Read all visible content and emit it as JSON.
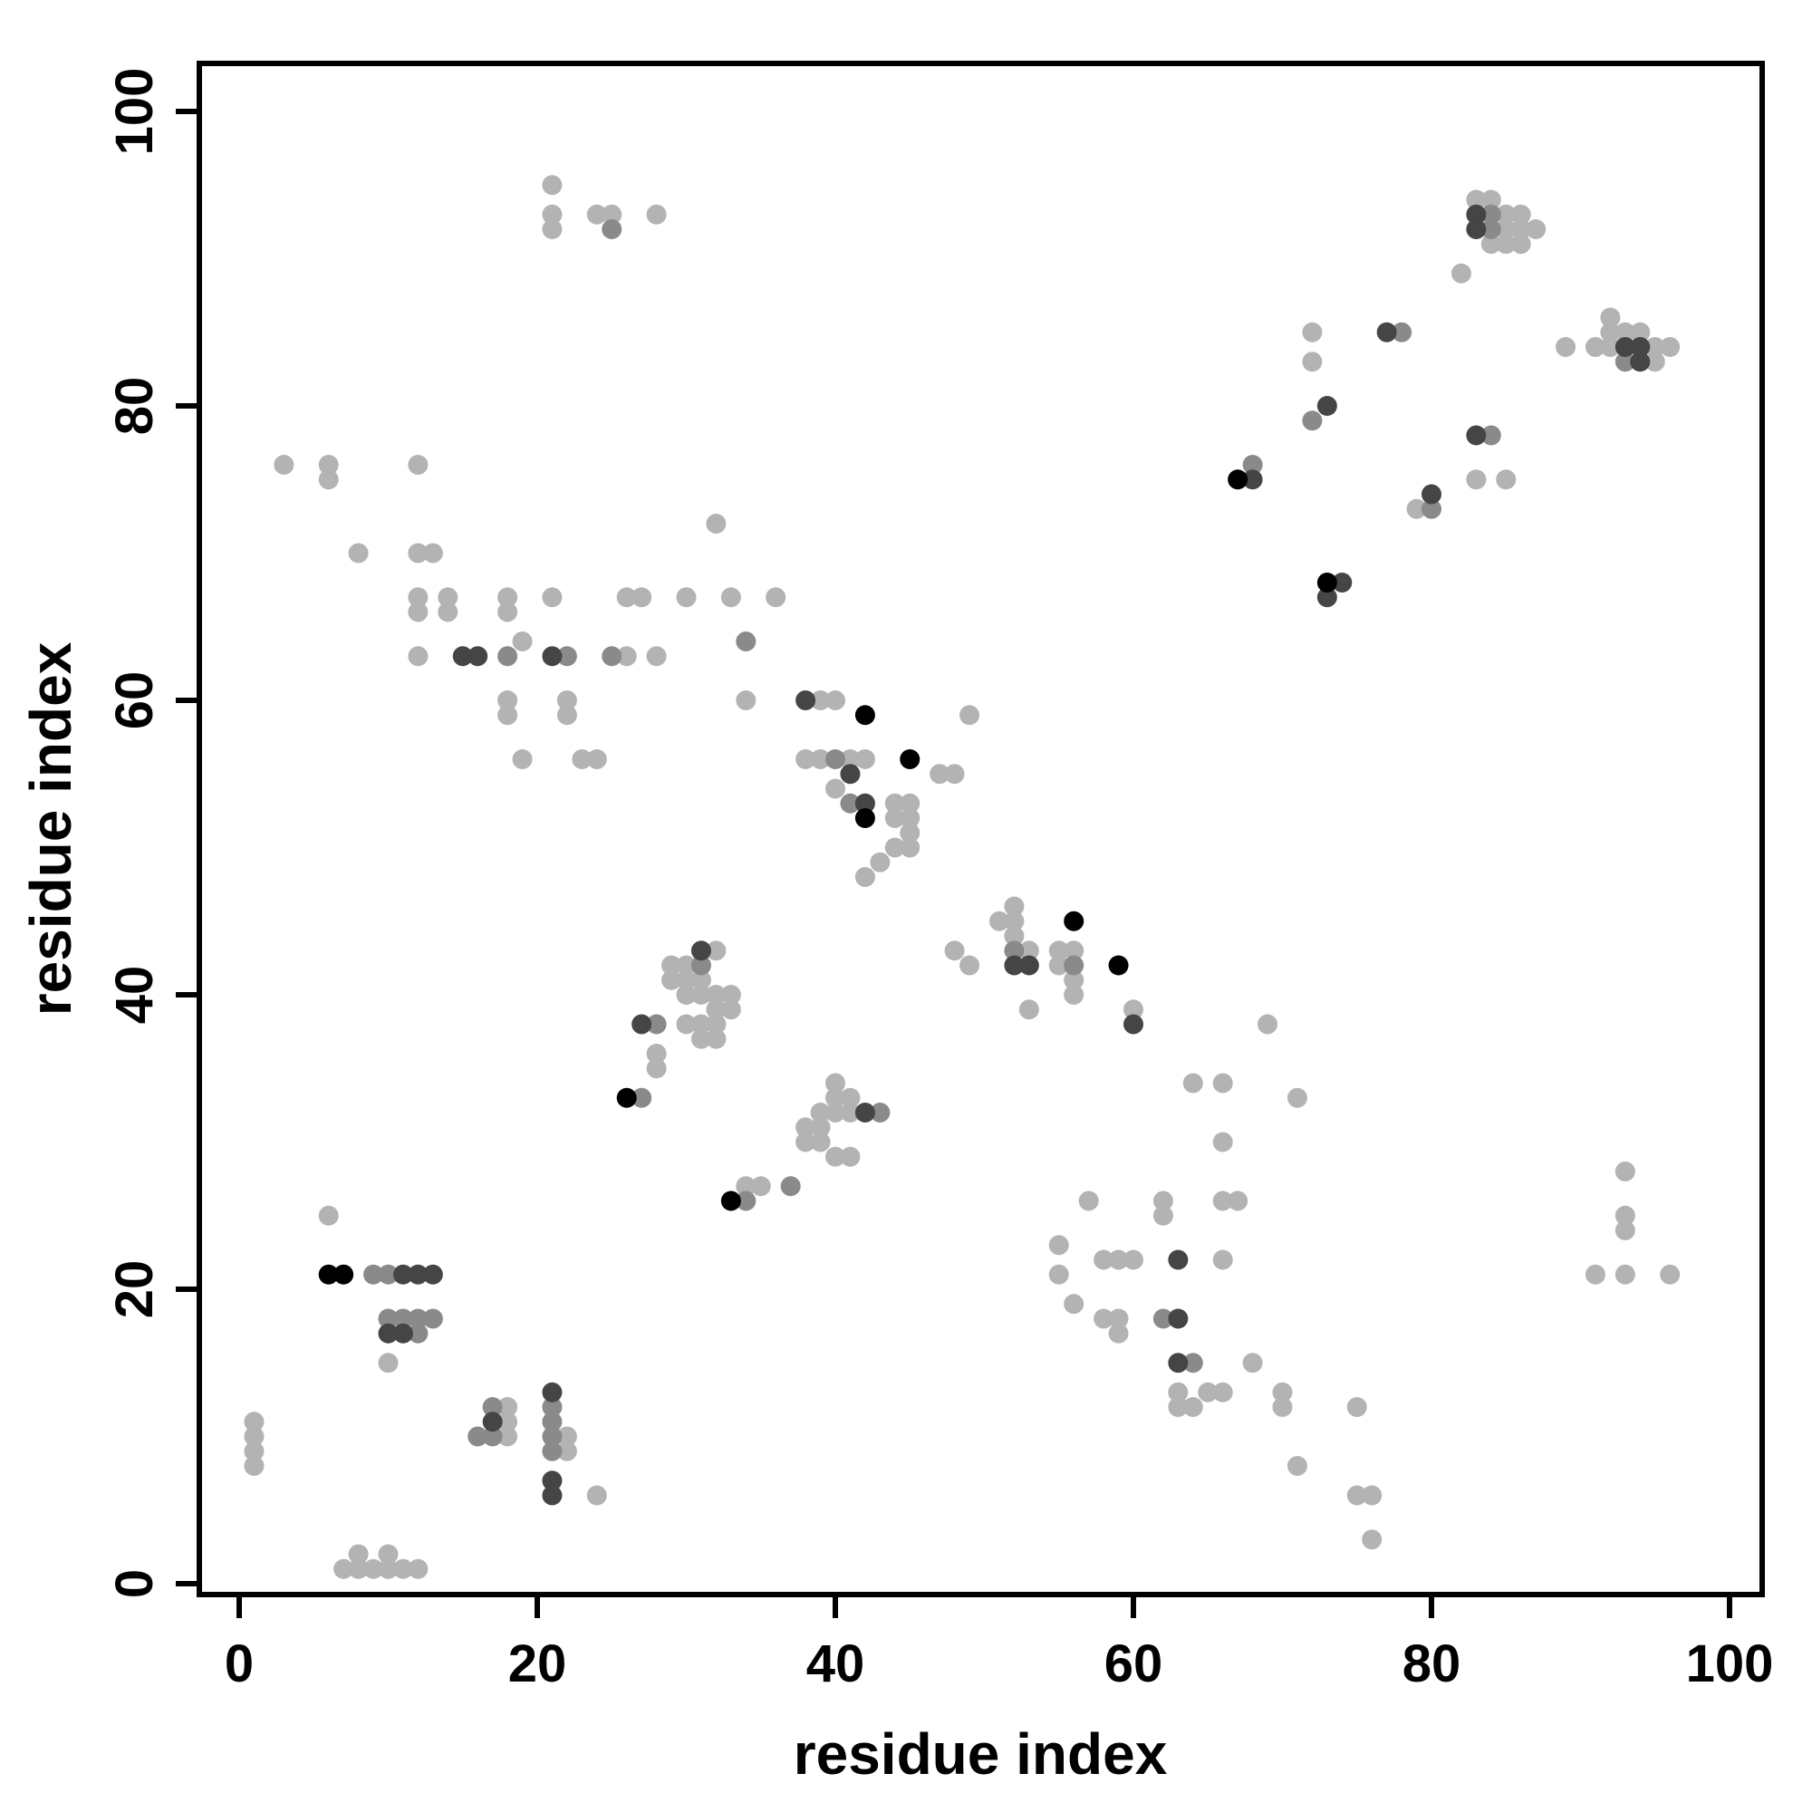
{
  "figure": {
    "background": "#ffffff",
    "frame_color": "#000000"
  },
  "chart_data": {
    "type": "scatter",
    "title": "",
    "xlabel": "residue index",
    "ylabel": "residue index",
    "xlim": [
      0,
      100
    ],
    "ylim": [
      0,
      100
    ],
    "x_ticks": [
      0,
      20,
      40,
      60,
      80,
      100
    ],
    "y_ticks": [
      0,
      20,
      40,
      60,
      80,
      100
    ],
    "grid": false,
    "legend": "none",
    "point_radius": 11,
    "shades": {
      "l": "#b3b3b3",
      "m": "#8a8a8a",
      "d": "#454545",
      "k": "#000000"
    },
    "points": [
      [
        1,
        11,
        "l"
      ],
      [
        1,
        10,
        "l"
      ],
      [
        1,
        9,
        "l"
      ],
      [
        1,
        8,
        "l"
      ],
      [
        7,
        1,
        "l"
      ],
      [
        8,
        2,
        "l"
      ],
      [
        8,
        1,
        "l"
      ],
      [
        9,
        1,
        "l"
      ],
      [
        10,
        2,
        "l"
      ],
      [
        10,
        1,
        "l"
      ],
      [
        11,
        1,
        "l"
      ],
      [
        12,
        1,
        "l"
      ],
      [
        6,
        25,
        "l"
      ],
      [
        6,
        21,
        "k"
      ],
      [
        7,
        21,
        "k"
      ],
      [
        9,
        21,
        "m"
      ],
      [
        10,
        21,
        "m"
      ],
      [
        11,
        21,
        "d"
      ],
      [
        12,
        21,
        "d"
      ],
      [
        13,
        21,
        "d"
      ],
      [
        10,
        18,
        "m"
      ],
      [
        11,
        18,
        "m"
      ],
      [
        12,
        18,
        "m"
      ],
      [
        13,
        18,
        "m"
      ],
      [
        10,
        17,
        "d"
      ],
      [
        11,
        17,
        "d"
      ],
      [
        12,
        17,
        "m"
      ],
      [
        10,
        15,
        "l"
      ],
      [
        16,
        10,
        "m"
      ],
      [
        17,
        12,
        "m"
      ],
      [
        17,
        11,
        "d"
      ],
      [
        17,
        10,
        "m"
      ],
      [
        18,
        12,
        "l"
      ],
      [
        18,
        11,
        "l"
      ],
      [
        18,
        10,
        "l"
      ],
      [
        21,
        13,
        "d"
      ],
      [
        21,
        12,
        "m"
      ],
      [
        21,
        11,
        "m"
      ],
      [
        21,
        10,
        "m"
      ],
      [
        21,
        9,
        "m"
      ],
      [
        22,
        10,
        "l"
      ],
      [
        22,
        9,
        "l"
      ],
      [
        21,
        7,
        "d"
      ],
      [
        21,
        6,
        "d"
      ],
      [
        24,
        6,
        "l"
      ],
      [
        3,
        76,
        "l"
      ],
      [
        6,
        76,
        "l"
      ],
      [
        6,
        75,
        "l"
      ],
      [
        12,
        76,
        "l"
      ],
      [
        8,
        70,
        "l"
      ],
      [
        12,
        70,
        "l"
      ],
      [
        13,
        70,
        "l"
      ],
      [
        12,
        67,
        "l"
      ],
      [
        12,
        66,
        "l"
      ],
      [
        14,
        67,
        "l"
      ],
      [
        14,
        66,
        "l"
      ],
      [
        12,
        63,
        "l"
      ],
      [
        15,
        63,
        "d"
      ],
      [
        16,
        63,
        "d"
      ],
      [
        18,
        63,
        "m"
      ],
      [
        19,
        64,
        "l"
      ],
      [
        18,
        67,
        "l"
      ],
      [
        18,
        66,
        "l"
      ],
      [
        18,
        60,
        "l"
      ],
      [
        18,
        59,
        "l"
      ],
      [
        19,
        56,
        "l"
      ],
      [
        21,
        67,
        "l"
      ],
      [
        21,
        63,
        "d"
      ],
      [
        22,
        63,
        "m"
      ],
      [
        22,
        60,
        "l"
      ],
      [
        22,
        59,
        "l"
      ],
      [
        23,
        56,
        "l"
      ],
      [
        24,
        56,
        "l"
      ],
      [
        25,
        63,
        "m"
      ],
      [
        26,
        63,
        "l"
      ],
      [
        28,
        63,
        "l"
      ],
      [
        26,
        67,
        "l"
      ],
      [
        27,
        67,
        "l"
      ],
      [
        30,
        67,
        "l"
      ],
      [
        33,
        67,
        "l"
      ],
      [
        36,
        67,
        "l"
      ],
      [
        32,
        72,
        "l"
      ],
      [
        34,
        64,
        "m"
      ],
      [
        34,
        60,
        "l"
      ],
      [
        21,
        95,
        "l"
      ],
      [
        21,
        93,
        "l"
      ],
      [
        21,
        92,
        "l"
      ],
      [
        24,
        93,
        "l"
      ],
      [
        25,
        93,
        "l"
      ],
      [
        25,
        92,
        "m"
      ],
      [
        28,
        93,
        "l"
      ],
      [
        26,
        33,
        "k"
      ],
      [
        27,
        33,
        "m"
      ],
      [
        27,
        38,
        "d"
      ],
      [
        28,
        38,
        "m"
      ],
      [
        28,
        36,
        "l"
      ],
      [
        28,
        35,
        "l"
      ],
      [
        29,
        42,
        "l"
      ],
      [
        30,
        42,
        "l"
      ],
      [
        29,
        41,
        "l"
      ],
      [
        30,
        41,
        "l"
      ],
      [
        31,
        43,
        "d"
      ],
      [
        32,
        43,
        "l"
      ],
      [
        31,
        42,
        "m"
      ],
      [
        31,
        41,
        "l"
      ],
      [
        30,
        40,
        "l"
      ],
      [
        31,
        40,
        "l"
      ],
      [
        32,
        40,
        "l"
      ],
      [
        33,
        40,
        "l"
      ],
      [
        32,
        39,
        "l"
      ],
      [
        33,
        39,
        "l"
      ],
      [
        30,
        38,
        "l"
      ],
      [
        31,
        38,
        "l"
      ],
      [
        32,
        38,
        "l"
      ],
      [
        31,
        37,
        "l"
      ],
      [
        32,
        37,
        "l"
      ],
      [
        33,
        26,
        "k"
      ],
      [
        34,
        26,
        "m"
      ],
      [
        34,
        27,
        "l"
      ],
      [
        35,
        27,
        "l"
      ],
      [
        37,
        27,
        "m"
      ],
      [
        38,
        31,
        "l"
      ],
      [
        38,
        30,
        "l"
      ],
      [
        39,
        32,
        "l"
      ],
      [
        39,
        31,
        "l"
      ],
      [
        39,
        30,
        "l"
      ],
      [
        40,
        34,
        "l"
      ],
      [
        40,
        33,
        "l"
      ],
      [
        40,
        32,
        "l"
      ],
      [
        41,
        33,
        "l"
      ],
      [
        41,
        32,
        "l"
      ],
      [
        42,
        32,
        "d"
      ],
      [
        43,
        32,
        "m"
      ],
      [
        40,
        29,
        "l"
      ],
      [
        41,
        29,
        "l"
      ],
      [
        38,
        60,
        "d"
      ],
      [
        39,
        60,
        "l"
      ],
      [
        40,
        60,
        "l"
      ],
      [
        42,
        59,
        "k"
      ],
      [
        38,
        56,
        "l"
      ],
      [
        39,
        56,
        "l"
      ],
      [
        40,
        56,
        "m"
      ],
      [
        41,
        56,
        "l"
      ],
      [
        42,
        56,
        "l"
      ],
      [
        41,
        55,
        "d"
      ],
      [
        45,
        56,
        "k"
      ],
      [
        47,
        55,
        "l"
      ],
      [
        48,
        55,
        "l"
      ],
      [
        40,
        54,
        "l"
      ],
      [
        41,
        53,
        "m"
      ],
      [
        42,
        53,
        "d"
      ],
      [
        42,
        52,
        "k"
      ],
      [
        44,
        53,
        "l"
      ],
      [
        45,
        53,
        "l"
      ],
      [
        44,
        52,
        "l"
      ],
      [
        45,
        52,
        "l"
      ],
      [
        45,
        51,
        "l"
      ],
      [
        44,
        50,
        "l"
      ],
      [
        45,
        50,
        "l"
      ],
      [
        43,
        49,
        "l"
      ],
      [
        42,
        48,
        "l"
      ],
      [
        49,
        59,
        "l"
      ],
      [
        48,
        43,
        "l"
      ],
      [
        49,
        42,
        "l"
      ],
      [
        52,
        46,
        "l"
      ],
      [
        51,
        45,
        "l"
      ],
      [
        52,
        45,
        "l"
      ],
      [
        52,
        44,
        "l"
      ],
      [
        52,
        43,
        "m"
      ],
      [
        53,
        43,
        "l"
      ],
      [
        52,
        42,
        "d"
      ],
      [
        53,
        42,
        "d"
      ],
      [
        55,
        43,
        "l"
      ],
      [
        55,
        42,
        "l"
      ],
      [
        56,
        45,
        "k"
      ],
      [
        56,
        43,
        "l"
      ],
      [
        56,
        42,
        "m"
      ],
      [
        56,
        41,
        "l"
      ],
      [
        56,
        40,
        "l"
      ],
      [
        53,
        39,
        "l"
      ],
      [
        59,
        42,
        "k"
      ],
      [
        60,
        38,
        "d"
      ],
      [
        60,
        39,
        "l"
      ],
      [
        55,
        23,
        "l"
      ],
      [
        55,
        21,
        "l"
      ],
      [
        56,
        19,
        "l"
      ],
      [
        57,
        26,
        "l"
      ],
      [
        58,
        22,
        "l"
      ],
      [
        59,
        22,
        "l"
      ],
      [
        60,
        22,
        "l"
      ],
      [
        58,
        18,
        "l"
      ],
      [
        59,
        18,
        "l"
      ],
      [
        59,
        17,
        "l"
      ],
      [
        62,
        26,
        "l"
      ],
      [
        62,
        25,
        "l"
      ],
      [
        63,
        22,
        "d"
      ],
      [
        62,
        18,
        "m"
      ],
      [
        63,
        18,
        "d"
      ],
      [
        63,
        15,
        "d"
      ],
      [
        64,
        15,
        "m"
      ],
      [
        63,
        13,
        "l"
      ],
      [
        63,
        12,
        "l"
      ],
      [
        64,
        12,
        "l"
      ],
      [
        65,
        13,
        "l"
      ],
      [
        66,
        13,
        "l"
      ],
      [
        64,
        34,
        "l"
      ],
      [
        66,
        34,
        "l"
      ],
      [
        66,
        30,
        "l"
      ],
      [
        66,
        26,
        "l"
      ],
      [
        67,
        26,
        "l"
      ],
      [
        66,
        22,
        "l"
      ],
      [
        68,
        15,
        "l"
      ],
      [
        70,
        13,
        "l"
      ],
      [
        70,
        12,
        "l"
      ],
      [
        71,
        33,
        "l"
      ],
      [
        69,
        38,
        "l"
      ],
      [
        71,
        8,
        "l"
      ],
      [
        75,
        12,
        "l"
      ],
      [
        75,
        6,
        "l"
      ],
      [
        76,
        6,
        "l"
      ],
      [
        76,
        3,
        "l"
      ],
      [
        67,
        75,
        "k"
      ],
      [
        68,
        75,
        "d"
      ],
      [
        68,
        76,
        "m"
      ],
      [
        73,
        68,
        "k"
      ],
      [
        74,
        68,
        "d"
      ],
      [
        73,
        67,
        "d"
      ],
      [
        72,
        79,
        "m"
      ],
      [
        73,
        80,
        "d"
      ],
      [
        72,
        85,
        "l"
      ],
      [
        72,
        83,
        "l"
      ],
      [
        77,
        85,
        "d"
      ],
      [
        78,
        85,
        "m"
      ],
      [
        79,
        73,
        "l"
      ],
      [
        80,
        73,
        "m"
      ],
      [
        80,
        74,
        "d"
      ],
      [
        83,
        75,
        "l"
      ],
      [
        85,
        75,
        "l"
      ],
      [
        83,
        78,
        "d"
      ],
      [
        84,
        78,
        "m"
      ],
      [
        82,
        89,
        "l"
      ],
      [
        83,
        94,
        "l"
      ],
      [
        84,
        94,
        "l"
      ],
      [
        83,
        93,
        "d"
      ],
      [
        84,
        93,
        "m"
      ],
      [
        85,
        93,
        "l"
      ],
      [
        86,
        93,
        "l"
      ],
      [
        83,
        92,
        "d"
      ],
      [
        84,
        92,
        "m"
      ],
      [
        85,
        92,
        "l"
      ],
      [
        86,
        92,
        "l"
      ],
      [
        87,
        92,
        "l"
      ],
      [
        84,
        91,
        "l"
      ],
      [
        85,
        91,
        "l"
      ],
      [
        86,
        91,
        "l"
      ],
      [
        89,
        84,
        "l"
      ],
      [
        92,
        86,
        "l"
      ],
      [
        92,
        85,
        "l"
      ],
      [
        93,
        85,
        "l"
      ],
      [
        94,
        85,
        "l"
      ],
      [
        91,
        84,
        "l"
      ],
      [
        92,
        84,
        "l"
      ],
      [
        93,
        84,
        "d"
      ],
      [
        94,
        84,
        "d"
      ],
      [
        95,
        84,
        "l"
      ],
      [
        96,
        84,
        "l"
      ],
      [
        93,
        83,
        "m"
      ],
      [
        94,
        83,
        "d"
      ],
      [
        95,
        83,
        "l"
      ],
      [
        93,
        28,
        "l"
      ],
      [
        93,
        25,
        "l"
      ],
      [
        93,
        24,
        "l"
      ],
      [
        91,
        21,
        "l"
      ],
      [
        93,
        21,
        "l"
      ],
      [
        96,
        21,
        "l"
      ]
    ]
  }
}
